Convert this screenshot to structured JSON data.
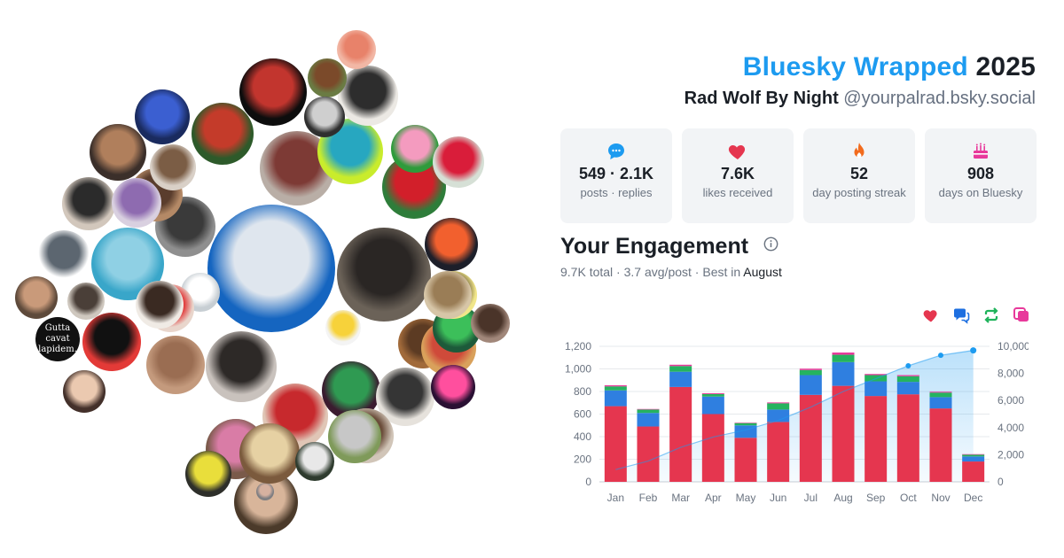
{
  "header": {
    "brand": "Bluesky Wrapped",
    "year": "2025",
    "display_name": "Rad Wolf By Night",
    "handle": "@yourpalrad.bsky.social"
  },
  "stats": [
    {
      "icon": "chat-bubble-icon",
      "color": "#1d9bf0",
      "value": "549 · 2.1K",
      "label": "posts · replies"
    },
    {
      "icon": "heart-icon",
      "color": "#e5364f",
      "value": "7.6K",
      "label": "likes received"
    },
    {
      "icon": "flame-icon",
      "color": "#f26b1d",
      "value": "52",
      "label": "day posting streak"
    },
    {
      "icon": "cake-icon",
      "color": "#e8399b",
      "value": "908",
      "label": "days on Bluesky"
    }
  ],
  "engagement": {
    "title": "Your Engagement",
    "total": "9.7K",
    "total_suffix": "total",
    "avg": "3.7 avg/post",
    "best_prefix": "Best in",
    "best_month": "August"
  },
  "legend": [
    {
      "icon": "heart-icon",
      "color": "#e5364f"
    },
    {
      "icon": "reply-icon",
      "color": "#1d6fe0"
    },
    {
      "icon": "repost-icon",
      "color": "#1fb35b"
    },
    {
      "icon": "quote-icon",
      "color": "#e8399b"
    }
  ],
  "chart_data": {
    "type": "bar",
    "stacked": true,
    "categories": [
      "Jan",
      "Feb",
      "Mar",
      "Apr",
      "May",
      "Jun",
      "Jul",
      "Aug",
      "Sep",
      "Oct",
      "Nov",
      "Dec"
    ],
    "series": [
      {
        "icon": "heart-icon",
        "color": "#e5364f",
        "values": [
          670,
          490,
          840,
          600,
          390,
          530,
          770,
          850,
          760,
          775,
          650,
          180
        ]
      },
      {
        "icon": "reply-icon",
        "color": "#2f7fe0",
        "values": [
          140,
          120,
          135,
          155,
          110,
          110,
          175,
          210,
          130,
          110,
          100,
          45
        ]
      },
      {
        "icon": "repost-icon",
        "color": "#25b35f",
        "values": [
          35,
          30,
          50,
          22,
          20,
          55,
          45,
          65,
          55,
          50,
          40,
          15
        ]
      },
      {
        "icon": "quote-icon",
        "color": "#e8399b",
        "values": [
          10,
          5,
          12,
          8,
          4,
          8,
          12,
          20,
          10,
          10,
          8,
          5
        ]
      }
    ],
    "cumulative": {
      "color": "#1d9bf0",
      "values": [
        900,
        1530,
        2540,
        3310,
        3830,
        4530,
        5510,
        6660,
        7610,
        8560,
        9340,
        9700
      ]
    },
    "y_left": {
      "range": [
        0,
        1200
      ],
      "ticks": [
        "0",
        "200",
        "400",
        "600",
        "800",
        "1,000",
        "1,200"
      ]
    },
    "y_right": {
      "range": [
        0,
        10000
      ],
      "ticks": [
        "0",
        "2,000",
        "4,000",
        "6,000",
        "8,000",
        "10,000"
      ]
    },
    "grid": true
  },
  "avatars": [
    {
      "name": "avatar-funko-pop",
      "bg": "#1565c0",
      "inner": "#dfe6ee"
    },
    {
      "name": "avatar-black-dog",
      "bg": "#6b6258",
      "inner": "#2a2624"
    },
    {
      "name": "avatar-bald-man-gray-shirt",
      "bg": "#b9aea6",
      "inner": "#7d3a35"
    },
    {
      "name": "avatar-blue-portrait",
      "bg": "#39a6c9",
      "inner": "#8fd0e4"
    },
    {
      "name": "avatar-gray-bob-hair",
      "bg": "#c9c2bd",
      "inner": "#2d2927"
    },
    {
      "name": "avatar-tattoo",
      "bg": "#c49a7d",
      "inner": "#9a6d52"
    },
    {
      "name": "avatar-red-hat-figure",
      "bg": "#0d0d0d",
      "inner": "#c2352e"
    },
    {
      "name": "avatar-red-knit-mask",
      "bg": "#2e7d3a",
      "inner": "#d21f2a"
    },
    {
      "name": "avatar-woman-red-dress",
      "bg": "#e0c6b6",
      "inner": "#c7292d"
    },
    {
      "name": "avatar-green-cartoon",
      "bg": "#3b1b2f",
      "inner": "#2f9a52"
    },
    {
      "name": "avatar-ho-toy-noodle",
      "bg": "#e6e2dc",
      "inner": "#353535"
    },
    {
      "name": "avatar-red-wheel",
      "bg": "#e33a37",
      "inner": "#111111"
    },
    {
      "name": "avatar-dog-face",
      "bg": "#a16a3a",
      "inner": "#5c3b23"
    },
    {
      "name": "avatar-man-beard-gray",
      "bg": "#8f8f8f",
      "inner": "#3a3a3a"
    },
    {
      "name": "avatar-beach-painting",
      "bg": "#d9a15b",
      "inner": "#cf4a3a"
    },
    {
      "name": "avatar-cartoon-character",
      "bg": "#2d5a2a",
      "inner": "#c43b2a"
    },
    {
      "name": "avatar-woman-pink-hair",
      "bg": "#7a5a4a",
      "inner": "#d97ca6"
    },
    {
      "name": "avatar-woman-glasses",
      "bg": "#b48966",
      "inner": "#5a3d2d"
    },
    {
      "name": "avatar-man-brown-hair",
      "bg": "#4b3a2a",
      "inner": "#d8b59a"
    },
    {
      "name": "avatar-woman-bedroom",
      "bg": "#d1c5b8",
      "inner": "#6b4d3a"
    },
    {
      "name": "avatar-man-glasses-dark",
      "bg": "#d2c7bc",
      "inner": "#2b2b2b"
    },
    {
      "name": "avatar-teal-face-art",
      "bg": "#c9ec2c",
      "inner": "#27a7c0"
    },
    {
      "name": "avatar-bearded-portrait",
      "bg": "#ece9e4",
      "inner": "#2d2d2d"
    },
    {
      "name": "avatar-woman-cap",
      "bg": "#7e7e82",
      "inner": "#d6b1a0"
    },
    {
      "name": "avatar-bishop",
      "bg": "#7b5a3d",
      "inner": "#e6d1a3"
    },
    {
      "name": "avatar-blue-glow",
      "bg": "#1a2b5f",
      "inner": "#3b5fd1"
    },
    {
      "name": "avatar-white-dog",
      "bg": "#c7ced3",
      "inner": "#ffffff"
    },
    {
      "name": "avatar-simpsons-grandpa",
      "bg": "#f4f4f4",
      "inner": "#f7d23a"
    },
    {
      "name": "avatar-pug",
      "bg": "#3b2f2a",
      "inner": "#b07f5c"
    },
    {
      "name": "avatar-lipstick",
      "bg": "#e9d6cc",
      "inner": "#e13c3c"
    },
    {
      "name": "avatar-sculpture",
      "bg": "#d9d0c7",
      "inner": "#7b5d45"
    },
    {
      "name": "avatar-gray-cat",
      "bg": "#ffffff",
      "inner": "#5c6670"
    },
    {
      "name": "avatar-green-woman",
      "bg": "#1d5a3a",
      "inner": "#3cbf5a"
    },
    {
      "name": "avatar-man-vintage",
      "bg": "#cfc8bf",
      "inner": "#4a3f38"
    },
    {
      "name": "avatar-gutta-cavat-lapidem",
      "bg": "#111111",
      "inner": "#111111",
      "text": "Gutta cavat lapidem."
    },
    {
      "name": "avatar-neon-figure",
      "bg": "#2a1033",
      "inner": "#ff4f9e"
    },
    {
      "name": "avatar-kirby",
      "bg": "#2e9b3b",
      "inner": "#f49bbf"
    },
    {
      "name": "avatar-red-flower",
      "bg": "#d6e0d6",
      "inner": "#d91d3a"
    },
    {
      "name": "avatar-td-logo",
      "bg": "#1d1f2a",
      "inner": "#f2602e"
    },
    {
      "name": "avatar-yellow-comic",
      "bg": "#f1e68a",
      "inner": "#6b5d3a"
    },
    {
      "name": "avatar-woman-long-hair",
      "bg": "#a1877a",
      "inner": "#4a3429"
    },
    {
      "name": "avatar-pink-cartoon",
      "bg": "#f2b7a5",
      "inner": "#e8826a"
    },
    {
      "name": "avatar-highland-cow",
      "bg": "#6a7b43",
      "inner": "#7b4a2a"
    },
    {
      "name": "avatar-black-white-photo",
      "bg": "#2f2f2f",
      "inner": "#cfcfcf"
    },
    {
      "name": "avatar-dog-sleeping",
      "bg": "#d7c6a8",
      "inner": "#9a7d56"
    },
    {
      "name": "avatar-comic-panel",
      "bg": "#2e2f2a",
      "inner": "#e9de3b"
    },
    {
      "name": "avatar-woman-white-hair",
      "bg": "#7f9a5a",
      "inner": "#c7c7c7"
    },
    {
      "name": "avatar-bird",
      "bg": "#2e3b2e",
      "inner": "#e8e8e8"
    },
    {
      "name": "avatar-wine-bottle",
      "bg": "#d9d0e0",
      "inner": "#8e6bb0"
    },
    {
      "name": "avatar-coffee-cup",
      "bg": "#f0ebe5",
      "inner": "#3a2a22"
    },
    {
      "name": "avatar-portrait-window",
      "bg": "#5e4a3b",
      "inner": "#c99a7a"
    },
    {
      "name": "avatar-woman-bob",
      "bg": "#43302a",
      "inner": "#ebc9b0"
    }
  ]
}
